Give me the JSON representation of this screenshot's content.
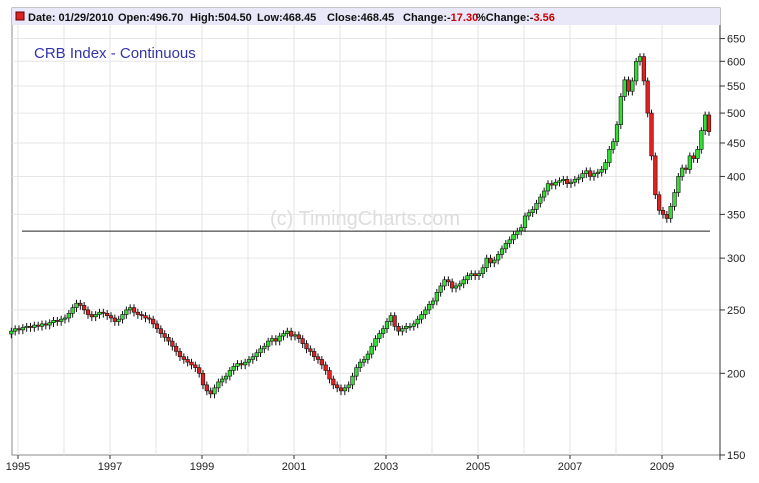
{
  "header": {
    "date_label": "Date: 01/29/2010",
    "open_label": "Open:496.70",
    "high_label": "High:504.50",
    "low_label": "Low:468.45",
    "close_label": "Close:468.45",
    "change_label": "Change:-",
    "change_value": "17.30",
    "pct_label": "%Change:-",
    "pct_value": "3.56"
  },
  "colors": {
    "up": "#33dd33",
    "down": "#dd2222",
    "title": "#3333aa",
    "header_bg": "#e8e8f8",
    "negative": "#cc0000"
  },
  "chart_data": {
    "type": "candlestick",
    "title": "CRB Index - Continuous",
    "watermark": "(c) TimingCharts.com",
    "y_scale": "log",
    "ylim": [
      150,
      660
    ],
    "y_ticks": [
      150,
      200,
      250,
      300,
      350,
      400,
      450,
      500,
      550,
      600,
      650
    ],
    "x_ticks": [
      "1995",
      "1997",
      "1999",
      "2001",
      "2003",
      "2005",
      "2007",
      "2009"
    ],
    "start_month": "1994-11",
    "interval": "monthly",
    "horizontal_line": 330,
    "grid": true,
    "closes": [
      232,
      234,
      233,
      235,
      236,
      235,
      237,
      236,
      238,
      237,
      239,
      241,
      240,
      242,
      243,
      247,
      252,
      256,
      254,
      250,
      246,
      244,
      246,
      248,
      247,
      245,
      243,
      240,
      242,
      246,
      250,
      252,
      248,
      246,
      245,
      243,
      242,
      238,
      234,
      230,
      227,
      224,
      220,
      216,
      212,
      210,
      208,
      206,
      204,
      200,
      192,
      188,
      186,
      190,
      194,
      196,
      198,
      202,
      205,
      207,
      206,
      208,
      210,
      212,
      215,
      218,
      220,
      224,
      226,
      224,
      228,
      230,
      232,
      228,
      229,
      226,
      222,
      218,
      216,
      212,
      210,
      206,
      202,
      196,
      192,
      190,
      188,
      190,
      192,
      198,
      204,
      208,
      210,
      214,
      220,
      226,
      230,
      234,
      240,
      245,
      236,
      232,
      234,
      236,
      236,
      238,
      242,
      246,
      250,
      255,
      258,
      266,
      272,
      278,
      276,
      270,
      272,
      274,
      278,
      282,
      284,
      282,
      284,
      290,
      300,
      295,
      298,
      304,
      310,
      316,
      320,
      326,
      330,
      334,
      348,
      352,
      356,
      364,
      372,
      380,
      390,
      388,
      392,
      394,
      396,
      390,
      392,
      396,
      398,
      404,
      408,
      400,
      404,
      406,
      410,
      420,
      440,
      452,
      480,
      530,
      562,
      540,
      560,
      600,
      610,
      560,
      500,
      430,
      375,
      355,
      350,
      345,
      360,
      378,
      400,
      412,
      410,
      430,
      426,
      440,
      470,
      496.7,
      468.45
    ]
  }
}
